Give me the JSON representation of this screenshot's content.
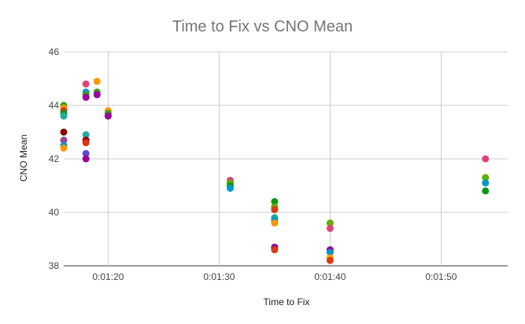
{
  "chart_data": {
    "type": "scatter",
    "title": "Time to Fix vs CNO Mean",
    "xlabel": "Time to Fix",
    "ylabel": "CNO Mean",
    "xlim": [
      "0:01:16",
      "0:01:56"
    ],
    "ylim": [
      38,
      46
    ],
    "x_ticks": [
      "0:01:20",
      "0:01:30",
      "0:01:40",
      "0:01:50"
    ],
    "y_ticks": [
      38,
      40,
      42,
      44,
      46
    ],
    "grid": true,
    "legend": "none",
    "points": [
      {
        "x": "0:01:16",
        "y": 44.0,
        "color": "#3c9b1f"
      },
      {
        "x": "0:01:16",
        "y": 43.9,
        "color": "#ff9900"
      },
      {
        "x": "0:01:16",
        "y": 43.8,
        "color": "#dc3912"
      },
      {
        "x": "0:01:16",
        "y": 43.7,
        "color": "#109618"
      },
      {
        "x": "0:01:16",
        "y": 43.6,
        "color": "#22aa99"
      },
      {
        "x": "0:01:16",
        "y": 43.0,
        "color": "#8b0000"
      },
      {
        "x": "0:01:16",
        "y": 42.7,
        "color": "#994499"
      },
      {
        "x": "0:01:16",
        "y": 42.5,
        "color": "#0099c6"
      },
      {
        "x": "0:01:16",
        "y": 42.4,
        "color": "#ff9900"
      },
      {
        "x": "0:01:18",
        "y": 44.8,
        "color": "#dd4477"
      },
      {
        "x": "0:01:18",
        "y": 44.5,
        "color": "#0099c6"
      },
      {
        "x": "0:01:18",
        "y": 44.4,
        "color": "#3c9b1f"
      },
      {
        "x": "0:01:18",
        "y": 44.3,
        "color": "#990099"
      },
      {
        "x": "0:01:18",
        "y": 42.9,
        "color": "#22aa99"
      },
      {
        "x": "0:01:18",
        "y": 42.7,
        "color": "#8b0000"
      },
      {
        "x": "0:01:18",
        "y": 42.6,
        "color": "#dc3912"
      },
      {
        "x": "0:01:18",
        "y": 42.2,
        "color": "#5c4bd6"
      },
      {
        "x": "0:01:18",
        "y": 42.0,
        "color": "#990099"
      },
      {
        "x": "0:01:19",
        "y": 44.9,
        "color": "#ff9900"
      },
      {
        "x": "0:01:19",
        "y": 44.5,
        "color": "#3c9b1f"
      },
      {
        "x": "0:01:19",
        "y": 44.4,
        "color": "#990099"
      },
      {
        "x": "0:01:20",
        "y": 43.8,
        "color": "#ff9900"
      },
      {
        "x": "0:01:20",
        "y": 43.7,
        "color": "#3c9b1f"
      },
      {
        "x": "0:01:20",
        "y": 43.6,
        "color": "#990099"
      },
      {
        "x": "0:01:31",
        "y": 41.2,
        "color": "#dd4477"
      },
      {
        "x": "0:01:31",
        "y": 41.1,
        "color": "#66aa00"
      },
      {
        "x": "0:01:31",
        "y": 41.0,
        "color": "#109618"
      },
      {
        "x": "0:01:31",
        "y": 40.9,
        "color": "#0099c6"
      },
      {
        "x": "0:01:35",
        "y": 40.4,
        "color": "#109618"
      },
      {
        "x": "0:01:35",
        "y": 40.2,
        "color": "#66aa00"
      },
      {
        "x": "0:01:35",
        "y": 40.1,
        "color": "#dc3912"
      },
      {
        "x": "0:01:35",
        "y": 39.8,
        "color": "#22aa99"
      },
      {
        "x": "0:01:35",
        "y": 39.7,
        "color": "#0099c6"
      },
      {
        "x": "0:01:35",
        "y": 39.6,
        "color": "#ff9900"
      },
      {
        "x": "0:01:35",
        "y": 38.7,
        "color": "#990099"
      },
      {
        "x": "0:01:35",
        "y": 38.6,
        "color": "#dc3912"
      },
      {
        "x": "0:01:40",
        "y": 39.6,
        "color": "#66aa00"
      },
      {
        "x": "0:01:40",
        "y": 39.4,
        "color": "#dd4477"
      },
      {
        "x": "0:01:40",
        "y": 38.6,
        "color": "#990099"
      },
      {
        "x": "0:01:40",
        "y": 38.5,
        "color": "#0099c6"
      },
      {
        "x": "0:01:40",
        "y": 38.3,
        "color": "#ff9900"
      },
      {
        "x": "0:01:40",
        "y": 38.2,
        "color": "#dc3912"
      },
      {
        "x": "0:01:54",
        "y": 42.0,
        "color": "#dd4477"
      },
      {
        "x": "0:01:54",
        "y": 41.3,
        "color": "#66aa00"
      },
      {
        "x": "0:01:54",
        "y": 41.1,
        "color": "#0099c6"
      },
      {
        "x": "0:01:54",
        "y": 40.8,
        "color": "#109618"
      }
    ]
  }
}
